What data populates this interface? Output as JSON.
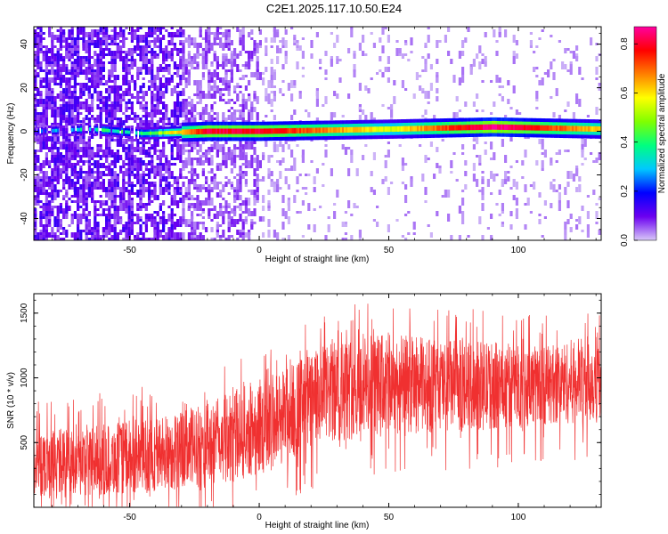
{
  "title": "C2E1.2025.117.10.50.E24",
  "chart_data": [
    {
      "type": "heatmap",
      "xlabel": "Height of straight line (km)",
      "ylabel": "Frequency (Hz)",
      "xlim": [
        -87,
        132
      ],
      "ylim": [
        -50,
        48
      ],
      "xticks": [
        -50,
        0,
        50,
        100
      ],
      "yticks": [
        -40,
        -20,
        0,
        20,
        40
      ],
      "colorbar": {
        "label": "Normalized spectral amplitude",
        "range": [
          0,
          0.87
        ],
        "ticks": [
          0.0,
          0.2,
          0.4,
          0.6,
          0.8
        ],
        "colormap": [
          "#d8c8f8",
          "#6b00f0",
          "#0000ff",
          "#00c8ff",
          "#00ff80",
          "#80ff00",
          "#ffff00",
          "#ff8000",
          "#ff0000",
          "#ff00a0"
        ]
      },
      "ridge": [
        {
          "x": -87,
          "freq": 0,
          "amp": 0.2
        },
        {
          "x": -65,
          "freq": 1,
          "amp": 0.35
        },
        {
          "x": -45,
          "freq": -1,
          "amp": 0.4
        },
        {
          "x": -20,
          "freq": 0,
          "amp": 0.8
        },
        {
          "x": 0,
          "freq": 0,
          "amp": 0.8
        },
        {
          "x": 50,
          "freq": 1,
          "amp": 0.55
        },
        {
          "x": 90,
          "freq": 2,
          "amp": 0.87
        },
        {
          "x": 132,
          "freq": 1,
          "amp": 0.6
        }
      ]
    },
    {
      "type": "line",
      "xlabel": "Height of straight line (km)",
      "ylabel": "SNR (10 * v/v)",
      "xlim": [
        -87,
        132
      ],
      "ylim": [
        0,
        1650
      ],
      "xticks": [
        -50,
        0,
        50,
        100
      ],
      "yticks": [
        500,
        1000,
        1500
      ],
      "color": "#f03030",
      "envelope": {
        "x": [
          -87,
          -60,
          -40,
          -20,
          0,
          15,
          25,
          35,
          50,
          70,
          90,
          110,
          132
        ],
        "lower": [
          80,
          90,
          110,
          160,
          250,
          380,
          480,
          520,
          560,
          580,
          600,
          640,
          650
        ],
        "upper": [
          600,
          640,
          700,
          800,
          1000,
          1150,
          1250,
          1320,
          1350,
          1300,
          1280,
          1250,
          1350
        ]
      }
    }
  ]
}
